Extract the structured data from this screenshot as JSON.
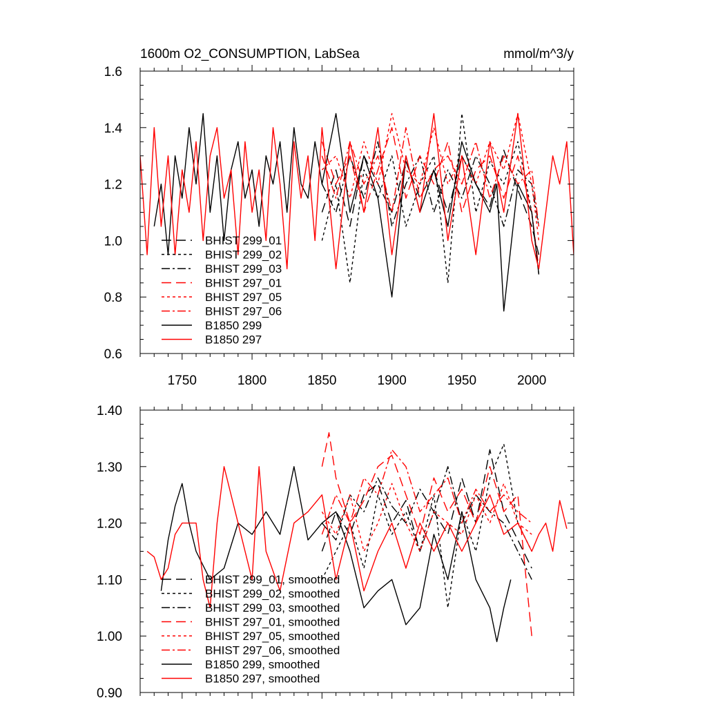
{
  "header": {
    "title": "1600m O2_CONSUMPTION, LabSea",
    "units": "mmol/m^3/y"
  },
  "chart_data": [
    {
      "type": "line",
      "title": "1600m O2_CONSUMPTION, LabSea",
      "units": "mmol/m^3/y",
      "xlim": [
        1720,
        2030
      ],
      "ylim": [
        0.6,
        1.6
      ],
      "xticks": [
        "1750",
        "1800",
        "1850",
        "1900",
        "1950",
        "2000"
      ],
      "yticks": [
        "0.6",
        "0.8",
        "1.0",
        "1.2",
        "1.4",
        "1.6"
      ],
      "legend_position": "lower-left",
      "series": [
        {
          "name": "BHIST 299_01",
          "color": "#000000",
          "dash": "long-dash",
          "x": [
            1850,
            1860,
            1870,
            1880,
            1890,
            1900,
            1910,
            1920,
            1930,
            1940,
            1950,
            1960,
            1970,
            1980,
            1990,
            2000,
            2005
          ],
          "y": [
            1.1,
            1.25,
            1.05,
            1.3,
            1.2,
            1.1,
            1.28,
            1.15,
            1.25,
            1.1,
            1.3,
            1.2,
            1.12,
            1.32,
            1.18,
            1.05,
            0.95
          ]
        },
        {
          "name": "BHIST 299_02",
          "color": "#000000",
          "dash": "dot",
          "x": [
            1850,
            1860,
            1870,
            1880,
            1890,
            1900,
            1910,
            1920,
            1930,
            1940,
            1950,
            1960,
            1970,
            1980,
            1990,
            2000,
            2005
          ],
          "y": [
            1.0,
            1.2,
            0.85,
            1.25,
            1.15,
            1.3,
            1.05,
            1.2,
            1.3,
            0.85,
            1.45,
            1.1,
            1.28,
            1.2,
            1.35,
            1.1,
            0.88
          ]
        },
        {
          "name": "BHIST 299_03",
          "color": "#000000",
          "dash": "dash-dot",
          "x": [
            1850,
            1860,
            1870,
            1880,
            1890,
            1900,
            1910,
            1920,
            1930,
            1940,
            1950,
            1960,
            1970,
            1980,
            1990,
            2000,
            2005
          ],
          "y": [
            1.2,
            1.1,
            1.3,
            1.15,
            1.35,
            1.05,
            1.2,
            1.3,
            1.1,
            1.25,
            1.15,
            1.3,
            1.2,
            1.05,
            1.25,
            1.2,
            1.05
          ]
        },
        {
          "name": "BHIST 297_01",
          "color": "#ff0000",
          "dash": "long-dash",
          "x": [
            1850,
            1860,
            1870,
            1880,
            1890,
            1900,
            1910,
            1920,
            1930,
            1940,
            1950,
            1960,
            1970,
            1980,
            1990,
            2000,
            2005
          ],
          "y": [
            1.35,
            1.2,
            1.3,
            1.1,
            1.25,
            1.4,
            1.15,
            1.3,
            1.2,
            1.35,
            1.1,
            1.25,
            1.3,
            1.15,
            1.3,
            1.1,
            0.9
          ]
        },
        {
          "name": "BHIST 297_05",
          "color": "#ff0000",
          "dash": "dot",
          "x": [
            1850,
            1860,
            1870,
            1880,
            1890,
            1900,
            1910,
            1920,
            1930,
            1940,
            1950,
            1960,
            1970,
            1980,
            1990,
            2000,
            2005
          ],
          "y": [
            1.25,
            1.3,
            1.15,
            1.35,
            1.2,
            1.45,
            1.25,
            1.2,
            1.4,
            1.2,
            1.3,
            1.2,
            1.35,
            1.25,
            1.45,
            1.2,
            1.0
          ]
        },
        {
          "name": "BHIST 297_06",
          "color": "#ff0000",
          "dash": "dash-dot",
          "x": [
            1850,
            1860,
            1870,
            1880,
            1890,
            1900,
            1910,
            1920,
            1930,
            1940,
            1950,
            1960,
            1970,
            1980,
            1990,
            2000,
            2005
          ],
          "y": [
            1.3,
            1.15,
            1.35,
            1.2,
            1.3,
            1.1,
            1.4,
            1.15,
            1.25,
            1.3,
            1.2,
            1.35,
            1.15,
            1.3,
            1.2,
            1.25,
            1.05
          ]
        },
        {
          "name": "B1850 299",
          "color": "#000000",
          "dash": "solid",
          "x": [
            1730,
            1735,
            1740,
            1745,
            1750,
            1755,
            1760,
            1765,
            1770,
            1775,
            1780,
            1785,
            1790,
            1795,
            1800,
            1805,
            1810,
            1815,
            1820,
            1825,
            1830,
            1835,
            1840,
            1845,
            1850,
            1860,
            1870,
            1880,
            1890,
            1900,
            1910,
            1920,
            1930,
            1940,
            1950,
            1960,
            1970,
            1975,
            1980,
            1990,
            2000,
            2005
          ],
          "y": [
            1.05,
            1.2,
            0.95,
            1.3,
            1.15,
            1.4,
            1.2,
            1.45,
            1.1,
            1.3,
            1.0,
            1.25,
            1.35,
            1.15,
            1.25,
            1.05,
            1.3,
            1.2,
            1.35,
            1.1,
            1.4,
            1.2,
            1.15,
            1.35,
            1.2,
            1.45,
            1.1,
            1.3,
            1.15,
            0.8,
            1.3,
            1.1,
            1.25,
            1.05,
            1.35,
            1.2,
            1.1,
            1.2,
            0.75,
            1.2,
            1.1,
            0.88
          ]
        },
        {
          "name": "B1850 297",
          "color": "#ff0000",
          "dash": "solid",
          "x": [
            1720,
            1725,
            1730,
            1735,
            1740,
            1745,
            1750,
            1755,
            1760,
            1765,
            1770,
            1775,
            1780,
            1785,
            1790,
            1795,
            1800,
            1805,
            1810,
            1815,
            1820,
            1825,
            1830,
            1835,
            1840,
            1845,
            1850,
            1860,
            1870,
            1880,
            1890,
            1900,
            1910,
            1920,
            1930,
            1940,
            1950,
            1960,
            1970,
            1980,
            1990,
            2000,
            2005,
            2010,
            2015,
            2020,
            2025,
            2030
          ],
          "y": [
            1.3,
            0.95,
            1.4,
            1.05,
            1.3,
            0.95,
            1.25,
            1.1,
            1.35,
            1.0,
            1.3,
            1.4,
            1.15,
            1.25,
            0.95,
            1.35,
            1.1,
            1.25,
            1.0,
            1.4,
            1.2,
            0.9,
            1.35,
            1.15,
            1.3,
            1.0,
            1.4,
            0.9,
            1.35,
            1.1,
            1.4,
            0.95,
            1.3,
            1.1,
            1.45,
            1.0,
            1.3,
            0.95,
            1.35,
            1.1,
            1.45,
            1.0,
            0.9,
            1.1,
            1.3,
            1.2,
            1.35,
            0.95
          ]
        }
      ]
    },
    {
      "type": "line",
      "xlim": [
        1720,
        2030
      ],
      "ylim": [
        0.9,
        1.4
      ],
      "yticks": [
        "0.90",
        "1.00",
        "1.10",
        "1.20",
        "1.30",
        "1.40"
      ],
      "legend_position": "lower-left",
      "series": [
        {
          "name": "BHIST 299_01, smoothed",
          "color": "#000000",
          "dash": "long-dash",
          "x": [
            1850,
            1860,
            1870,
            1880,
            1890,
            1900,
            1910,
            1920,
            1930,
            1940,
            1950,
            1960,
            1970,
            1980,
            1990,
            2000
          ],
          "y": [
            1.15,
            1.22,
            1.18,
            1.25,
            1.27,
            1.2,
            1.24,
            1.15,
            1.22,
            1.18,
            1.28,
            1.2,
            1.33,
            1.22,
            1.17,
            1.12
          ]
        },
        {
          "name": "BHIST 299_02, smoothed",
          "color": "#000000",
          "dash": "dot",
          "x": [
            1850,
            1860,
            1870,
            1880,
            1890,
            1900,
            1910,
            1920,
            1930,
            1940,
            1950,
            1960,
            1970,
            1980,
            1990,
            2000
          ],
          "y": [
            1.1,
            1.15,
            1.2,
            1.12,
            1.25,
            1.18,
            1.22,
            1.15,
            1.25,
            1.05,
            1.22,
            1.15,
            1.28,
            1.34,
            1.2,
            1.15
          ]
        },
        {
          "name": "BHIST 299_03, smoothed",
          "color": "#000000",
          "dash": "dash-dot",
          "x": [
            1850,
            1860,
            1870,
            1880,
            1890,
            1900,
            1910,
            1920,
            1930,
            1940,
            1950,
            1960,
            1970,
            1980,
            1990,
            2000
          ],
          "y": [
            1.2,
            1.17,
            1.25,
            1.22,
            1.28,
            1.23,
            1.2,
            1.26,
            1.22,
            1.3,
            1.2,
            1.25,
            1.22,
            1.2,
            1.15,
            1.1
          ]
        },
        {
          "name": "BHIST 297_01, smoothed",
          "color": "#ff0000",
          "dash": "long-dash",
          "x": [
            1850,
            1855,
            1860,
            1870,
            1880,
            1890,
            1900,
            1910,
            1920,
            1930,
            1940,
            1950,
            1960,
            1970,
            1980,
            1990,
            2000
          ],
          "y": [
            1.3,
            1.36,
            1.28,
            1.2,
            1.24,
            1.3,
            1.32,
            1.25,
            1.18,
            1.28,
            1.22,
            1.26,
            1.2,
            1.3,
            1.22,
            1.25,
            1.0
          ]
        },
        {
          "name": "BHIST 297_05, smoothed",
          "color": "#ff0000",
          "dash": "dot",
          "x": [
            1850,
            1860,
            1870,
            1880,
            1890,
            1900,
            1910,
            1920,
            1930,
            1940,
            1950,
            1960,
            1970,
            1980,
            1990,
            2000
          ],
          "y": [
            1.22,
            1.18,
            1.25,
            1.15,
            1.2,
            1.27,
            1.2,
            1.15,
            1.22,
            1.2,
            1.18,
            1.25,
            1.2,
            1.27,
            1.2,
            1.18
          ]
        },
        {
          "name": "BHIST 297_06, smoothed",
          "color": "#ff0000",
          "dash": "dash-dot",
          "x": [
            1850,
            1860,
            1870,
            1880,
            1890,
            1900,
            1910,
            1920,
            1930,
            1940,
            1950,
            1960,
            1970,
            1980,
            1990,
            2000
          ],
          "y": [
            1.18,
            1.25,
            1.2,
            1.28,
            1.25,
            1.33,
            1.3,
            1.22,
            1.25,
            1.28,
            1.2,
            1.26,
            1.22,
            1.25,
            1.22,
            1.2
          ]
        },
        {
          "name": "B1850 299, smoothed",
          "color": "#000000",
          "dash": "solid",
          "x": [
            1735,
            1740,
            1745,
            1750,
            1755,
            1760,
            1770,
            1780,
            1790,
            1800,
            1810,
            1820,
            1830,
            1840,
            1850,
            1860,
            1870,
            1880,
            1890,
            1900,
            1910,
            1920,
            1930,
            1940,
            1950,
            1960,
            1970,
            1975,
            1980,
            1985
          ],
          "y": [
            1.08,
            1.17,
            1.23,
            1.27,
            1.2,
            1.15,
            1.1,
            1.12,
            1.2,
            1.18,
            1.22,
            1.18,
            1.3,
            1.17,
            1.2,
            1.22,
            1.15,
            1.05,
            1.08,
            1.1,
            1.02,
            1.05,
            1.18,
            1.1,
            1.22,
            1.1,
            1.05,
            0.99,
            1.05,
            1.1
          ]
        },
        {
          "name": "B1850 297, smoothed",
          "color": "#ff0000",
          "dash": "solid",
          "x": [
            1725,
            1730,
            1735,
            1740,
            1745,
            1750,
            1760,
            1765,
            1770,
            1775,
            1780,
            1790,
            1800,
            1805,
            1810,
            1820,
            1830,
            1840,
            1850,
            1860,
            1870,
            1880,
            1890,
            1900,
            1910,
            1920,
            1930,
            1940,
            1950,
            1960,
            1970,
            1980,
            1990,
            2000,
            2005,
            2010,
            2015,
            2020,
            2025
          ],
          "y": [
            1.15,
            1.14,
            1.1,
            1.12,
            1.18,
            1.2,
            1.2,
            1.1,
            1.05,
            1.2,
            1.3,
            1.2,
            1.1,
            1.3,
            1.15,
            1.08,
            1.2,
            1.22,
            1.25,
            1.1,
            1.2,
            1.08,
            1.15,
            1.2,
            1.12,
            1.2,
            1.15,
            1.2,
            1.15,
            1.2,
            1.25,
            1.18,
            1.2,
            1.15,
            1.18,
            1.2,
            1.15,
            1.24,
            1.19
          ]
        }
      ]
    }
  ]
}
